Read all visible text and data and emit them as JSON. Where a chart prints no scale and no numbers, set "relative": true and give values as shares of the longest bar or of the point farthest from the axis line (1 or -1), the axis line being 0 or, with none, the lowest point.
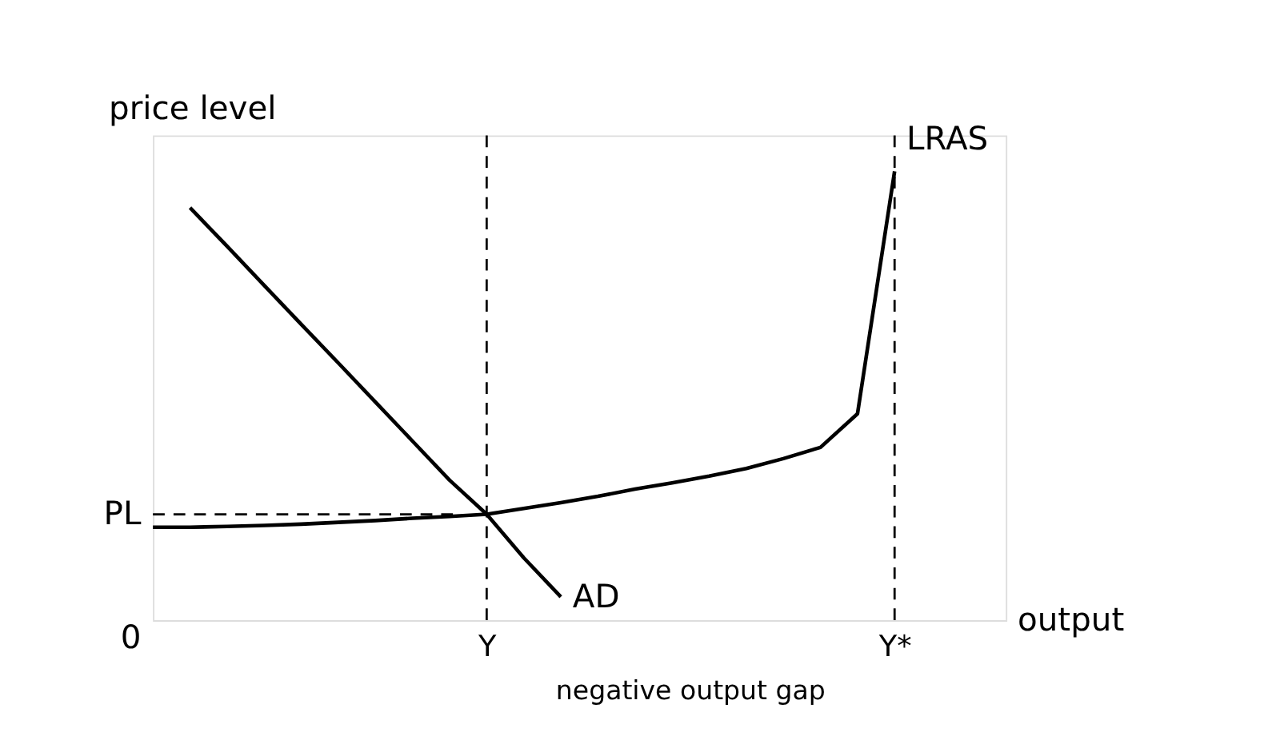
{
  "chart_data": {
    "type": "line",
    "relative": true,
    "xlabel": "output",
    "ylabel": "price level",
    "categories": [
      null,
      null,
      null,
      null,
      null,
      null,
      null,
      null,
      null,
      "Y",
      null,
      null,
      null,
      null,
      null,
      null,
      null,
      null,
      null,
      null,
      "Y*",
      null,
      null,
      null
    ],
    "series": [
      {
        "name": "LRAS",
        "color": "#000000",
        "values": [
          0.207,
          0.207,
          0.209,
          0.211,
          0.214,
          0.218,
          0.222,
          0.227,
          0.231,
          0.236,
          0.249,
          0.262,
          0.276,
          0.292,
          0.306,
          0.321,
          0.338,
          0.36,
          0.385,
          0.46,
          1,
          null,
          null,
          null
        ]
      },
      {
        "name": "AD",
        "color": "#000000",
        "values": [
          null,
          0.919,
          0.833,
          0.746,
          0.659,
          0.573,
          0.486,
          0.399,
          0.312,
          0.236,
          0.139,
          0.052,
          null,
          null,
          null,
          null,
          null,
          null,
          null,
          null,
          null,
          null,
          null,
          null
        ]
      }
    ],
    "ref_lines": [
      {
        "axis": "y",
        "value": 0.236,
        "label": "PL",
        "line_style": "dashed"
      },
      {
        "axis": "x",
        "value": "Y",
        "line_style": "dashed"
      },
      {
        "axis": "x",
        "value": "Y*",
        "line_style": "dashed"
      }
    ],
    "annotations": [
      "0",
      "negative output gap"
    ],
    "marker": "none",
    "line_style": "solid",
    "grid": false
  }
}
